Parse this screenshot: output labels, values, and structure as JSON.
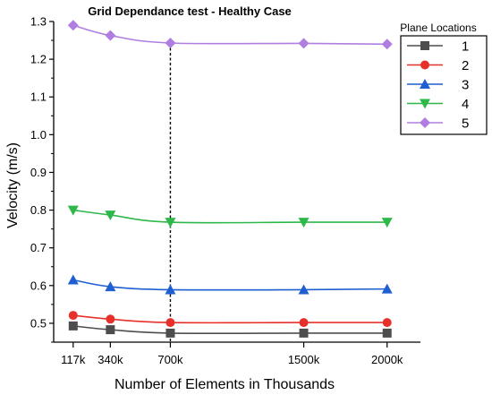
{
  "chart_data": {
    "type": "line",
    "title": "Grid Dependance test - Healthy Case",
    "xlabel": "Number of Elements in Thousands",
    "ylabel": "Velocity (m/s)",
    "categories": [
      "117k",
      "340k",
      "700k",
      "1500k",
      "2000k"
    ],
    "x": [
      117,
      340,
      700,
      1500,
      2000
    ],
    "xlim": [
      0,
      2200
    ],
    "ylim": [
      0.45,
      1.3
    ],
    "yticks": [
      "0.5",
      "0.6",
      "0.7",
      "0.8",
      "0.9",
      "1.0",
      "1.1",
      "1.2",
      "1.3"
    ],
    "yticks_values": [
      0.5,
      0.6,
      0.7,
      0.8,
      0.9,
      1.0,
      1.1,
      1.2,
      1.3
    ],
    "reference_line_x": 700,
    "legend_title": "Plane Locations",
    "legend_position": "top-right",
    "grid": false,
    "series": [
      {
        "name": "1",
        "values": [
          0.493,
          0.483,
          0.474,
          0.474,
          0.474
        ],
        "color": "#4d4d4d",
        "marker": "square"
      },
      {
        "name": "2",
        "values": [
          0.521,
          0.511,
          0.502,
          0.502,
          0.502
        ],
        "color": "#e8302a",
        "marker": "circle"
      },
      {
        "name": "3",
        "values": [
          0.615,
          0.597,
          0.589,
          0.589,
          0.591
        ],
        "color": "#1f5fd1",
        "marker": "triangle-up"
      },
      {
        "name": "4",
        "values": [
          0.8,
          0.787,
          0.768,
          0.768,
          0.768
        ],
        "color": "#2eb84a",
        "marker": "triangle-down"
      },
      {
        "name": "5",
        "values": [
          1.29,
          1.263,
          1.243,
          1.242,
          1.24
        ],
        "color": "#b07ee0",
        "marker": "diamond"
      }
    ]
  }
}
